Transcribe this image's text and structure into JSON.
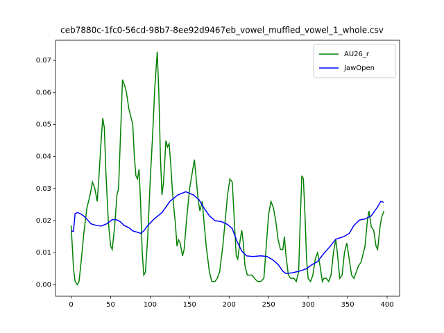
{
  "chart_data": {
    "type": "line",
    "title": "ceb7880c-1fc0-56cd-98b7-8ee92d9467eb_vowel_muffled_vowel_1_whole.csv",
    "xlim": [
      -19.8,
      415.8
    ],
    "xticks": [
      0,
      50,
      100,
      150,
      200,
      250,
      300,
      350,
      400
    ],
    "ylim": [
      -0.0036,
      0.0763
    ],
    "yticks": [
      {
        "value": 0,
        "label": "0.00"
      },
      {
        "value": 0.01,
        "label": "0.01"
      },
      {
        "value": 0.02,
        "label": "0.02"
      },
      {
        "value": 0.03,
        "label": "0.03"
      },
      {
        "value": 0.04,
        "label": "0.04"
      },
      {
        "value": 0.05,
        "label": "0.05"
      },
      {
        "value": 0.06,
        "label": "0.06"
      },
      {
        "value": 0.07,
        "label": "0.07"
      }
    ],
    "grid": false,
    "legend": "upper right",
    "series": [
      {
        "name": "AU26_r",
        "color": "#008000",
        "x": [
          0,
          3,
          5,
          8,
          10,
          13,
          16,
          20,
          24,
          27,
          30,
          33,
          35,
          38,
          40,
          42,
          44,
          47,
          50,
          52,
          55,
          58,
          60,
          63,
          65,
          68,
          70,
          73,
          76,
          78,
          80,
          82,
          84,
          86,
          88,
          90,
          92,
          94,
          97,
          100,
          103,
          106,
          109,
          111,
          113,
          115,
          117,
          120,
          122,
          124,
          126,
          128,
          130,
          132,
          134,
          136,
          138,
          141,
          143,
          146,
          150,
          154,
          156,
          158,
          161,
          163,
          166,
          168,
          171,
          175,
          178,
          182,
          185,
          188,
          192,
          195,
          198,
          201,
          204,
          207,
          209,
          211,
          214,
          216,
          218,
          220,
          223,
          226,
          229,
          232,
          236,
          240,
          244,
          247,
          250,
          253,
          256,
          259,
          262,
          265,
          268,
          270,
          272,
          275,
          278,
          282,
          285,
          288,
          290,
          292,
          294,
          296,
          298,
          300,
          303,
          306,
          309,
          312,
          315,
          318,
          320,
          323,
          326,
          329,
          332,
          335,
          337,
          340,
          343,
          346,
          349,
          352,
          355,
          358,
          361,
          364,
          367,
          370,
          372,
          375,
          377,
          380,
          383,
          386,
          388,
          391,
          393,
          396
        ],
        "values": [
          0.0185,
          0.005,
          0.001,
          0.0,
          0.001,
          0.008,
          0.016,
          0.024,
          0.028,
          0.032,
          0.03,
          0.026,
          0.033,
          0.045,
          0.052,
          0.049,
          0.035,
          0.02,
          0.012,
          0.011,
          0.018,
          0.028,
          0.03,
          0.05,
          0.064,
          0.062,
          0.06,
          0.055,
          0.052,
          0.05,
          0.04,
          0.034,
          0.033,
          0.036,
          0.025,
          0.01,
          0.003,
          0.004,
          0.015,
          0.032,
          0.046,
          0.062,
          0.0727,
          0.06,
          0.04,
          0.028,
          0.032,
          0.045,
          0.043,
          0.044,
          0.038,
          0.03,
          0.024,
          0.019,
          0.012,
          0.014,
          0.013,
          0.009,
          0.011,
          0.02,
          0.03,
          0.036,
          0.039,
          0.034,
          0.026,
          0.023,
          0.026,
          0.02,
          0.012,
          0.004,
          0.001,
          0.001,
          0.002,
          0.004,
          0.012,
          0.02,
          0.028,
          0.033,
          0.032,
          0.018,
          0.009,
          0.008,
          0.014,
          0.017,
          0.013,
          0.006,
          0.003,
          0.003,
          0.003,
          0.002,
          0.001,
          0.001,
          0.002,
          0.012,
          0.022,
          0.026,
          0.024,
          0.02,
          0.014,
          0.011,
          0.011,
          0.015,
          0.009,
          0.003,
          0.002,
          0.002,
          0.001,
          0.004,
          0.02,
          0.034,
          0.033,
          0.022,
          0.008,
          0.002,
          0.001,
          0.003,
          0.008,
          0.01,
          0.006,
          0.001,
          0.002,
          0.002,
          0.001,
          0.003,
          0.01,
          0.014,
          0.01,
          0.002,
          0.003,
          0.01,
          0.013,
          0.008,
          0.003,
          0.002,
          0.004,
          0.006,
          0.007,
          0.01,
          0.012,
          0.02,
          0.023,
          0.018,
          0.017,
          0.012,
          0.011,
          0.018,
          0.021,
          0.023
        ]
      },
      {
        "name": "JawOpen",
        "color": "#0000ff",
        "x": [
          0,
          3,
          5,
          8,
          13,
          18,
          25,
          32,
          38,
          45,
          52,
          57,
          62,
          67,
          73,
          78,
          85,
          88,
          92,
          97,
          105,
          115,
          125,
          135,
          145,
          155,
          162,
          168,
          175,
          182,
          190,
          198,
          204,
          210,
          216,
          222,
          230,
          240,
          248,
          255,
          262,
          268,
          272,
          280,
          290,
          298,
          305,
          312,
          320,
          328,
          335,
          345,
          352,
          358,
          365,
          372,
          380,
          388,
          392,
          396
        ],
        "values": [
          0.0167,
          0.0167,
          0.0222,
          0.0225,
          0.022,
          0.021,
          0.019,
          0.0185,
          0.0183,
          0.019,
          0.0203,
          0.0203,
          0.0197,
          0.0185,
          0.0178,
          0.0168,
          0.0163,
          0.016,
          0.0168,
          0.0185,
          0.0205,
          0.0225,
          0.026,
          0.028,
          0.029,
          0.028,
          0.0265,
          0.024,
          0.0215,
          0.02,
          0.0197,
          0.0188,
          0.0175,
          0.0135,
          0.0105,
          0.009,
          0.0088,
          0.009,
          0.0088,
          0.0078,
          0.0063,
          0.0042,
          0.0035,
          0.0037,
          0.0043,
          0.005,
          0.0063,
          0.0072,
          0.0098,
          0.012,
          0.0142,
          0.015,
          0.016,
          0.0185,
          0.0202,
          0.0205,
          0.0215,
          0.0243,
          0.026,
          0.0257
        ]
      }
    ]
  }
}
